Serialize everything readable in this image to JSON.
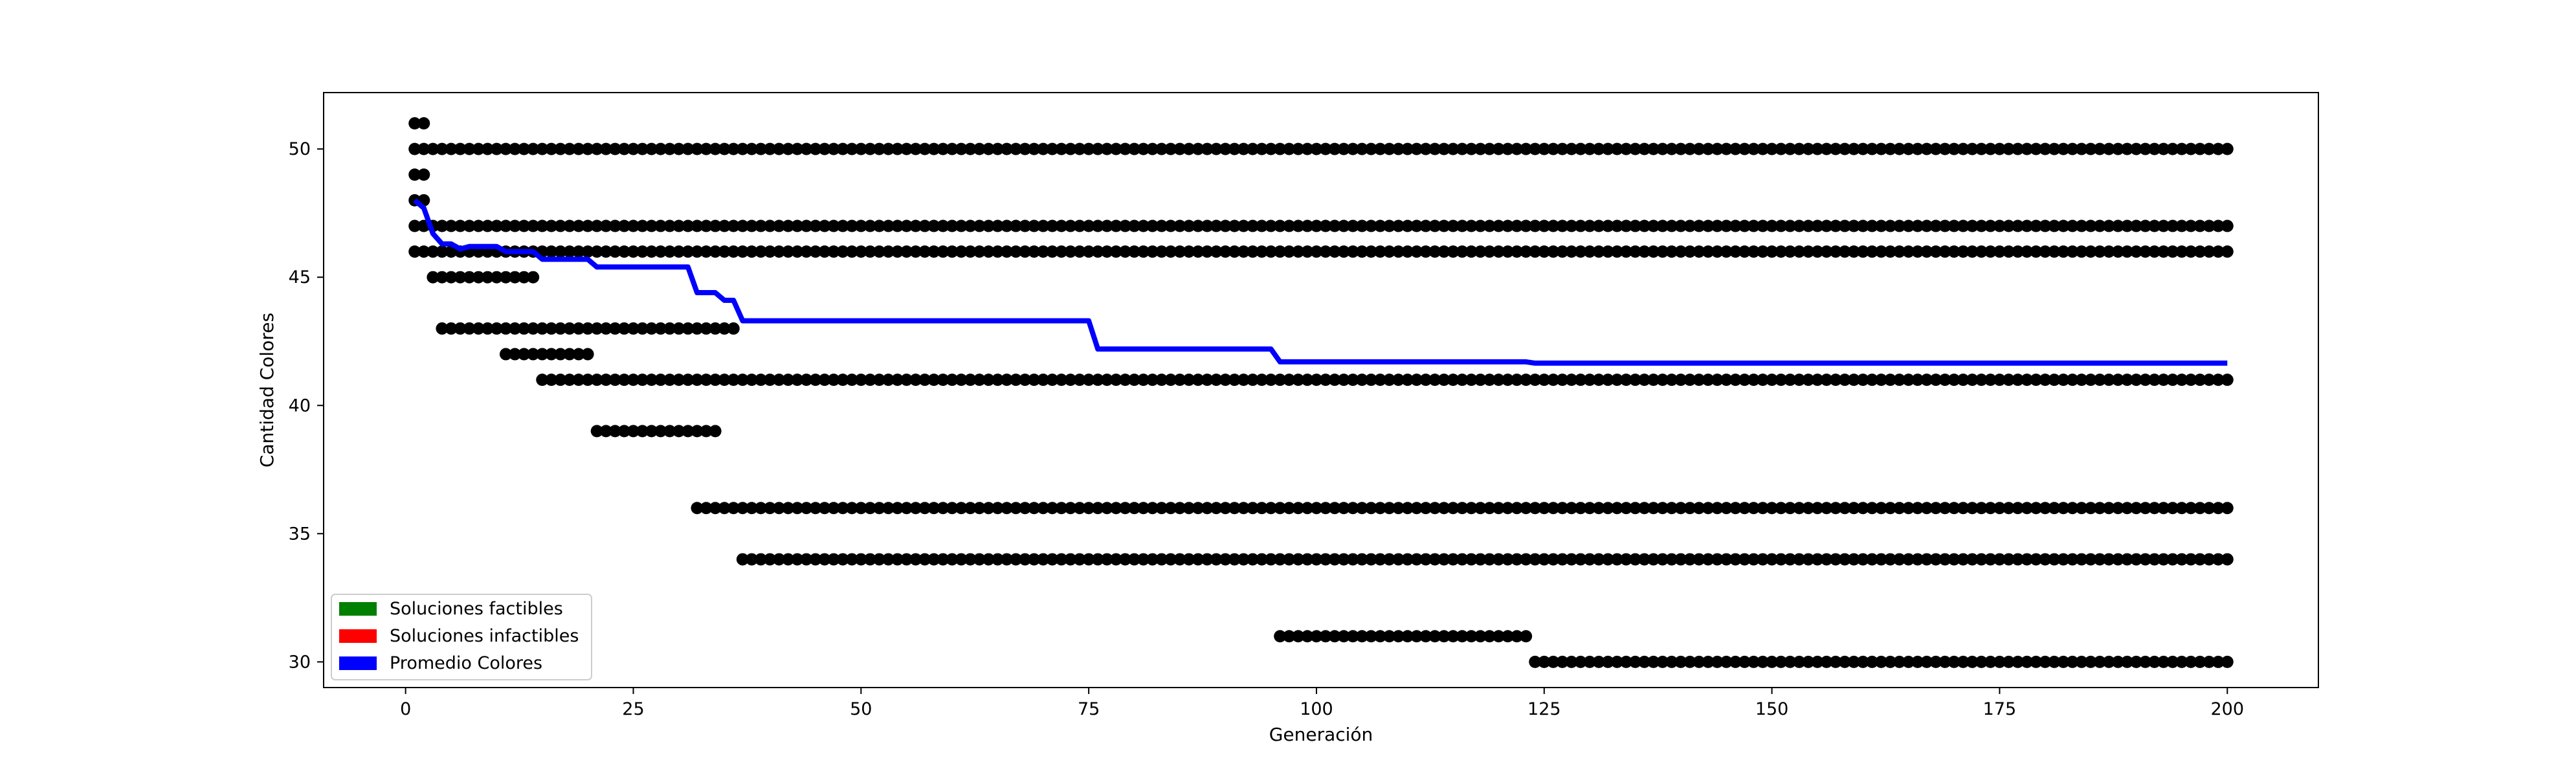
{
  "chart_data": {
    "type": "scatter",
    "title": "",
    "xlabel": "Generación",
    "ylabel": "Cantidad Colores",
    "xlim": [
      -9,
      210
    ],
    "ylim": [
      29.0,
      52.2
    ],
    "xticks": [
      0,
      25,
      50,
      75,
      100,
      125,
      150,
      175,
      200
    ],
    "yticks": [
      30,
      35,
      40,
      45,
      50
    ],
    "grid": false,
    "legend_position": "lower-left",
    "legend": [
      {
        "label": "Soluciones factibles",
        "color": "#008000"
      },
      {
        "label": "Soluciones infactibles",
        "color": "#ff0000"
      },
      {
        "label": "Promedio Colores",
        "color": "#0000ff"
      }
    ],
    "scatter_color": "#000000",
    "scatter_groups": [
      {
        "y": 51,
        "x_from": 1,
        "x_to": 2
      },
      {
        "y": 50,
        "x_from": 1,
        "x_to": 200
      },
      {
        "y": 49,
        "x_from": 1,
        "x_to": 2
      },
      {
        "y": 48,
        "x_from": 1,
        "x_to": 2
      },
      {
        "y": 47,
        "x_from": 1,
        "x_to": 200
      },
      {
        "y": 46,
        "x_from": 1,
        "x_to": 200
      },
      {
        "y": 45,
        "x_from": 3,
        "x_to": 14
      },
      {
        "y": 43,
        "x_from": 4,
        "x_to": 36
      },
      {
        "y": 42,
        "x_from": 11,
        "x_to": 20
      },
      {
        "y": 41,
        "x_from": 15,
        "x_to": 200
      },
      {
        "y": 39,
        "x_from": 21,
        "x_to": 34
      },
      {
        "y": 36,
        "x_from": 32,
        "x_to": 200
      },
      {
        "y": 34,
        "x_from": 37,
        "x_to": 200
      },
      {
        "y": 31,
        "x_from": 96,
        "x_to": 123
      },
      {
        "y": 30,
        "x_from": 124,
        "x_to": 200
      }
    ],
    "series": [
      {
        "name": "Promedio Colores",
        "color": "#0000ff",
        "points": [
          [
            1,
            48.0
          ],
          [
            2,
            47.7
          ],
          [
            3,
            46.7
          ],
          [
            4,
            46.3
          ],
          [
            5,
            46.3
          ],
          [
            6,
            46.1
          ],
          [
            7,
            46.2
          ],
          [
            10,
            46.2
          ],
          [
            11,
            46.0
          ],
          [
            14,
            46.0
          ],
          [
            15,
            45.7
          ],
          [
            20,
            45.7
          ],
          [
            21,
            45.4
          ],
          [
            31,
            45.4
          ],
          [
            32,
            44.4
          ],
          [
            34,
            44.4
          ],
          [
            35,
            44.1
          ],
          [
            36,
            44.1
          ],
          [
            37,
            43.3
          ],
          [
            75,
            43.3
          ],
          [
            76,
            42.2
          ],
          [
            95,
            42.2
          ],
          [
            96,
            41.7
          ],
          [
            123,
            41.7
          ],
          [
            124,
            41.65
          ],
          [
            200,
            41.65
          ]
        ]
      }
    ]
  }
}
